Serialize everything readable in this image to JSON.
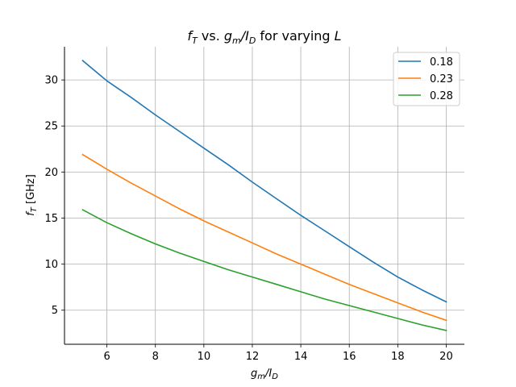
{
  "chart_data": {
    "type": "line",
    "title": {
      "main": "f",
      "main_sub": "T",
      "vs": " vs. ",
      "num": "g",
      "num_sub": "m",
      "slash": "/",
      "den": "I",
      "den_sub": "D",
      "suffix": " for varying ",
      "var": "L"
    },
    "xlabel": {
      "num": "g",
      "num_sub": "m",
      "slash": "/",
      "den": "I",
      "den_sub": "D"
    },
    "ylabel": {
      "main": "f",
      "main_sub": "T",
      "unit": " [GHz]"
    },
    "xlim": [
      4.25,
      20.75
    ],
    "ylim": [
      1.3,
      33.6
    ],
    "xticks": [
      6,
      8,
      10,
      12,
      14,
      16,
      18,
      20
    ],
    "yticks": [
      5,
      10,
      15,
      20,
      25,
      30
    ],
    "grid": true,
    "legend_position": "top-right",
    "x": [
      5,
      6,
      7,
      8,
      9,
      10,
      11,
      12,
      13,
      14,
      15,
      16,
      17,
      18,
      19,
      20
    ],
    "series": [
      {
        "name": "0.18",
        "color": "#1f77b4",
        "values": [
          32.1,
          29.9,
          28.1,
          26.2,
          24.4,
          22.6,
          20.8,
          18.9,
          17.1,
          15.3,
          13.6,
          11.9,
          10.2,
          8.6,
          7.2,
          5.9
        ]
      },
      {
        "name": "0.23",
        "color": "#ff7f0e",
        "values": [
          21.9,
          20.3,
          18.8,
          17.4,
          16.0,
          14.7,
          13.5,
          12.3,
          11.1,
          10.0,
          8.9,
          7.8,
          6.8,
          5.8,
          4.8,
          3.9
        ]
      },
      {
        "name": "0.28",
        "color": "#2ca02c",
        "values": [
          15.9,
          14.5,
          13.3,
          12.2,
          11.2,
          10.3,
          9.4,
          8.6,
          7.8,
          7.0,
          6.2,
          5.5,
          4.8,
          4.1,
          3.4,
          2.8
        ]
      }
    ]
  }
}
